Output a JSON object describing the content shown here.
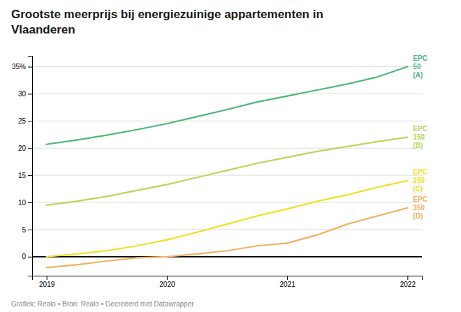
{
  "chart_data": {
    "type": "line",
    "title": "Grootste meerprijs bij energiezuinige appartementen in\nVlaanderen",
    "subtitle": "Grafiek: Realo • Bron: Realo • Gecreëerd met Datawrapper",
    "x": [
      2019,
      2019.25,
      2019.5,
      2019.75,
      2020,
      2020.25,
      2020.5,
      2020.75,
      2021,
      2021.25,
      2021.5,
      2021.75,
      2022
    ],
    "series": [
      {
        "name": "EPC\n50\n(A)",
        "color": "#4cb87a",
        "values": [
          20.7,
          21.5,
          22.4,
          23.4,
          24.5,
          25.8,
          27.1,
          28.5,
          29.6,
          30.7,
          31.8,
          33.1,
          35.0
        ]
      },
      {
        "name": "EPC\n150\n(B)",
        "color": "#b5d95a",
        "values": [
          9.5,
          10.2,
          11.1,
          12.2,
          13.3,
          14.6,
          15.9,
          17.2,
          18.3,
          19.4,
          20.3,
          21.2,
          22.0
        ]
      },
      {
        "name": "EPC\n250\n(C)",
        "color": "#f0e020",
        "values": [
          0.0,
          0.5,
          1.1,
          2.0,
          3.1,
          4.5,
          6.0,
          7.5,
          8.8,
          10.2,
          11.4,
          12.8,
          14.0
        ]
      },
      {
        "name": "EPC\n350\n(D)",
        "color": "#f5b060",
        "values": [
          -2.0,
          -1.5,
          -0.8,
          -0.2,
          0.0,
          0.5,
          1.1,
          2.0,
          2.5,
          4.0,
          6.0,
          7.5,
          9.0
        ]
      }
    ],
    "xlim": [
      2018.88,
      2022.12
    ],
    "xticks": [
      2019,
      2020,
      2021,
      2022
    ],
    "ylim": [
      -3.5,
      37
    ],
    "yticks": [
      0,
      5,
      10,
      15,
      20,
      25,
      30,
      {
        "value": 35,
        "label": "35%"
      }
    ],
    "grid": true
  }
}
